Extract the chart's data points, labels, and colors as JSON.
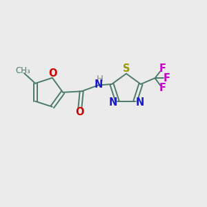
{
  "bg_color": "#ebebeb",
  "bond_color": "#4a7a6a",
  "furan_O_color": "#cc0000",
  "N_color": "#1a1acc",
  "S_color": "#999900",
  "F_color": "#cc00cc",
  "carbonyl_O_color": "#cc0000",
  "H_color": "#888888",
  "font_size": 10.5,
  "bond_lw": 1.4,
  "xlim": [
    0,
    10
  ],
  "ylim": [
    0,
    10
  ]
}
